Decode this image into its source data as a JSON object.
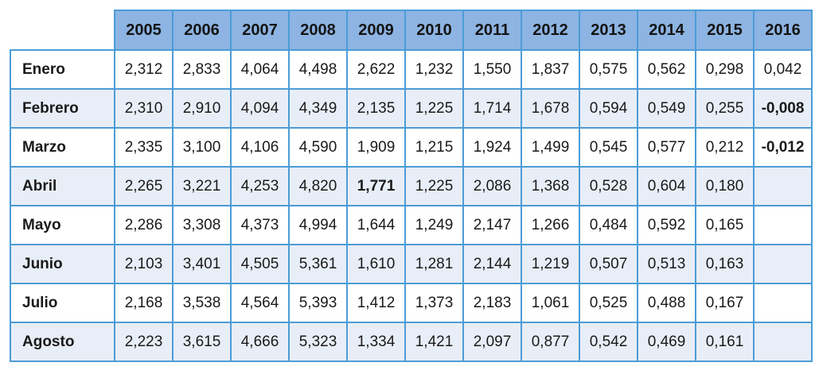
{
  "colors": {
    "header_fill": "#8db4e2",
    "border": "#4c9cd6",
    "row_alt_fill": "#e8eef7",
    "row_fill": "#ffffff",
    "text": "#1a1a1a"
  },
  "table": {
    "corner_label": "",
    "columns": [
      "2005",
      "2006",
      "2007",
      "2008",
      "2009",
      "2010",
      "2011",
      "2012",
      "2013",
      "2014",
      "2015",
      "2016"
    ],
    "rows": [
      {
        "label": "Enero",
        "values": [
          "2,312",
          "2,833",
          "4,064",
          "4,498",
          "2,622",
          "1,232",
          "1,550",
          "1,837",
          "0,575",
          "0,562",
          "0,298",
          "0,042"
        ],
        "bold": []
      },
      {
        "label": "Febrero",
        "values": [
          "2,310",
          "2,910",
          "4,094",
          "4,349",
          "2,135",
          "1,225",
          "1,714",
          "1,678",
          "0,594",
          "0,549",
          "0,255",
          "-0,008"
        ],
        "bold": [
          11
        ]
      },
      {
        "label": "Marzo",
        "values": [
          "2,335",
          "3,100",
          "4,106",
          "4,590",
          "1,909",
          "1,215",
          "1,924",
          "1,499",
          "0,545",
          "0,577",
          "0,212",
          "-0,012"
        ],
        "bold": [
          11
        ]
      },
      {
        "label": "Abril",
        "values": [
          "2,265",
          "3,221",
          "4,253",
          "4,820",
          "1,771",
          "1,225",
          "2,086",
          "1,368",
          "0,528",
          "0,604",
          "0,180",
          ""
        ],
        "bold": [
          4
        ]
      },
      {
        "label": "Mayo",
        "values": [
          "2,286",
          "3,308",
          "4,373",
          "4,994",
          "1,644",
          "1,249",
          "2,147",
          "1,266",
          "0,484",
          "0,592",
          "0,165",
          ""
        ],
        "bold": []
      },
      {
        "label": "Junio",
        "values": [
          "2,103",
          "3,401",
          "4,505",
          "5,361",
          "1,610",
          "1,281",
          "2,144",
          "1,219",
          "0,507",
          "0,513",
          "0,163",
          ""
        ],
        "bold": []
      },
      {
        "label": "Julio",
        "values": [
          "2,168",
          "3,538",
          "4,564",
          "5,393",
          "1,412",
          "1,373",
          "2,183",
          "1,061",
          "0,525",
          "0,488",
          "0,167",
          ""
        ],
        "bold": []
      },
      {
        "label": "Agosto",
        "values": [
          "2,223",
          "3,615",
          "4,666",
          "5,323",
          "1,334",
          "1,421",
          "2,097",
          "0,877",
          "0,542",
          "0,469",
          "0,161",
          ""
        ],
        "bold": []
      }
    ]
  },
  "chart_data": {
    "type": "table",
    "title": "",
    "categories": [
      "2005",
      "2006",
      "2007",
      "2008",
      "2009",
      "2010",
      "2011",
      "2012",
      "2013",
      "2014",
      "2015",
      "2016"
    ],
    "series": [
      {
        "name": "Enero",
        "values": [
          2.312,
          2.833,
          4.064,
          4.498,
          2.622,
          1.232,
          1.55,
          1.837,
          0.575,
          0.562,
          0.298,
          0.042
        ]
      },
      {
        "name": "Febrero",
        "values": [
          2.31,
          2.91,
          4.094,
          4.349,
          2.135,
          1.225,
          1.714,
          1.678,
          0.594,
          0.549,
          0.255,
          -0.008
        ]
      },
      {
        "name": "Marzo",
        "values": [
          2.335,
          3.1,
          4.106,
          4.59,
          1.909,
          1.215,
          1.924,
          1.499,
          0.545,
          0.577,
          0.212,
          -0.012
        ]
      },
      {
        "name": "Abril",
        "values": [
          2.265,
          3.221,
          4.253,
          4.82,
          1.771,
          1.225,
          2.086,
          1.368,
          0.528,
          0.604,
          0.18,
          null
        ]
      },
      {
        "name": "Mayo",
        "values": [
          2.286,
          3.308,
          4.373,
          4.994,
          1.644,
          1.249,
          2.147,
          1.266,
          0.484,
          0.592,
          0.165,
          null
        ]
      },
      {
        "name": "Junio",
        "values": [
          2.103,
          3.401,
          4.505,
          5.361,
          1.61,
          1.281,
          2.144,
          1.219,
          0.507,
          0.513,
          0.163,
          null
        ]
      },
      {
        "name": "Julio",
        "values": [
          2.168,
          3.538,
          4.564,
          5.393,
          1.412,
          1.373,
          2.183,
          1.061,
          0.525,
          0.488,
          0.167,
          null
        ]
      },
      {
        "name": "Agosto",
        "values": [
          2.223,
          3.615,
          4.666,
          5.323,
          1.334,
          1.421,
          2.097,
          0.877,
          0.542,
          0.469,
          0.161,
          null
        ]
      }
    ],
    "layout_hints": {
      "decimal_separator": ",",
      "header_row": "years",
      "row_labels": "months_spanish",
      "grid": "on"
    }
  }
}
